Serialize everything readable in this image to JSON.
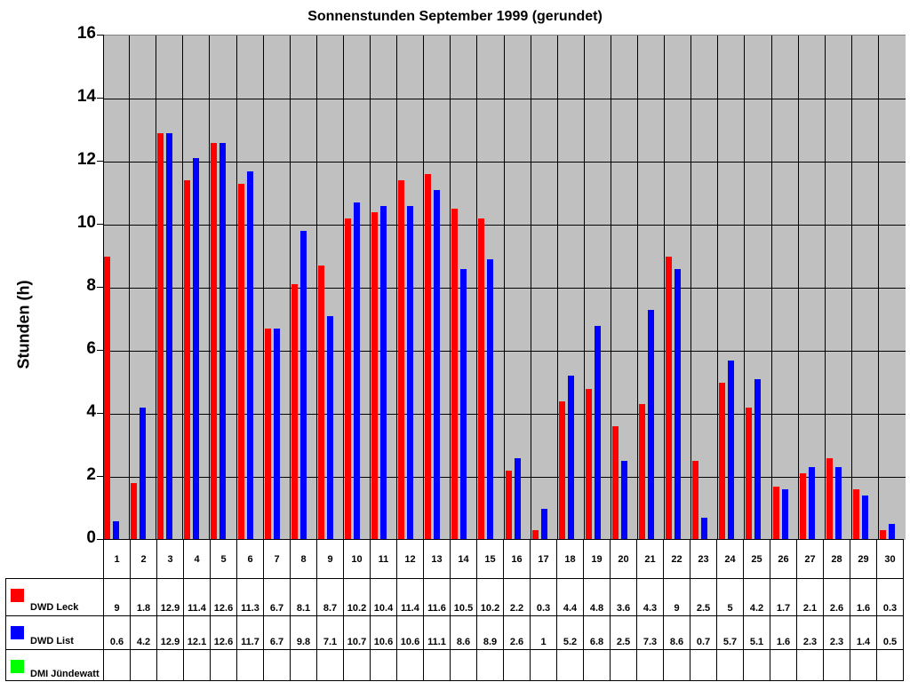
{
  "chart_data": {
    "type": "bar",
    "title": "Sonnenstunden September 1999 (gerundet)",
    "xlabel": "",
    "ylabel": "Stunden (h)",
    "ylim": [
      0,
      16
    ],
    "yticks": [
      0,
      2,
      4,
      6,
      8,
      10,
      12,
      14,
      16
    ],
    "grid": true,
    "legend_position": "data-table-bottom",
    "categories": [
      "1",
      "2",
      "3",
      "4",
      "5",
      "6",
      "7",
      "8",
      "9",
      "10",
      "11",
      "12",
      "13",
      "14",
      "15",
      "16",
      "17",
      "18",
      "19",
      "20",
      "21",
      "22",
      "23",
      "24",
      "25",
      "26",
      "27",
      "28",
      "29",
      "30"
    ],
    "series": [
      {
        "name": "DWD Leck",
        "color": "#ff0000",
        "values": [
          9,
          1.8,
          12.9,
          11.4,
          12.6,
          11.3,
          6.7,
          8.1,
          8.7,
          10.2,
          10.4,
          11.4,
          11.6,
          10.5,
          10.2,
          2.2,
          0.3,
          4.4,
          4.8,
          3.6,
          4.3,
          9,
          2.5,
          5,
          4.2,
          1.7,
          2.1,
          2.6,
          1.6,
          0.3
        ]
      },
      {
        "name": "DWD List",
        "color": "#0000ff",
        "values": [
          0.6,
          4.2,
          12.9,
          12.1,
          12.6,
          11.7,
          6.7,
          9.8,
          7.1,
          10.7,
          10.6,
          10.6,
          11.1,
          8.6,
          8.9,
          2.6,
          1,
          5.2,
          6.8,
          2.5,
          7.3,
          8.6,
          0.7,
          5.7,
          5.1,
          1.6,
          2.3,
          2.3,
          1.4,
          0.5
        ]
      },
      {
        "name": "DMI Jündewatt",
        "color": "#00ff00",
        "values": [
          null,
          null,
          null,
          null,
          null,
          null,
          null,
          null,
          null,
          null,
          null,
          null,
          null,
          null,
          null,
          null,
          null,
          null,
          null,
          null,
          null,
          null,
          null,
          null,
          null,
          null,
          null,
          null,
          null,
          null
        ]
      }
    ]
  },
  "colors": {
    "plot_background": "#c0c0c0",
    "grid": "#000000"
  }
}
